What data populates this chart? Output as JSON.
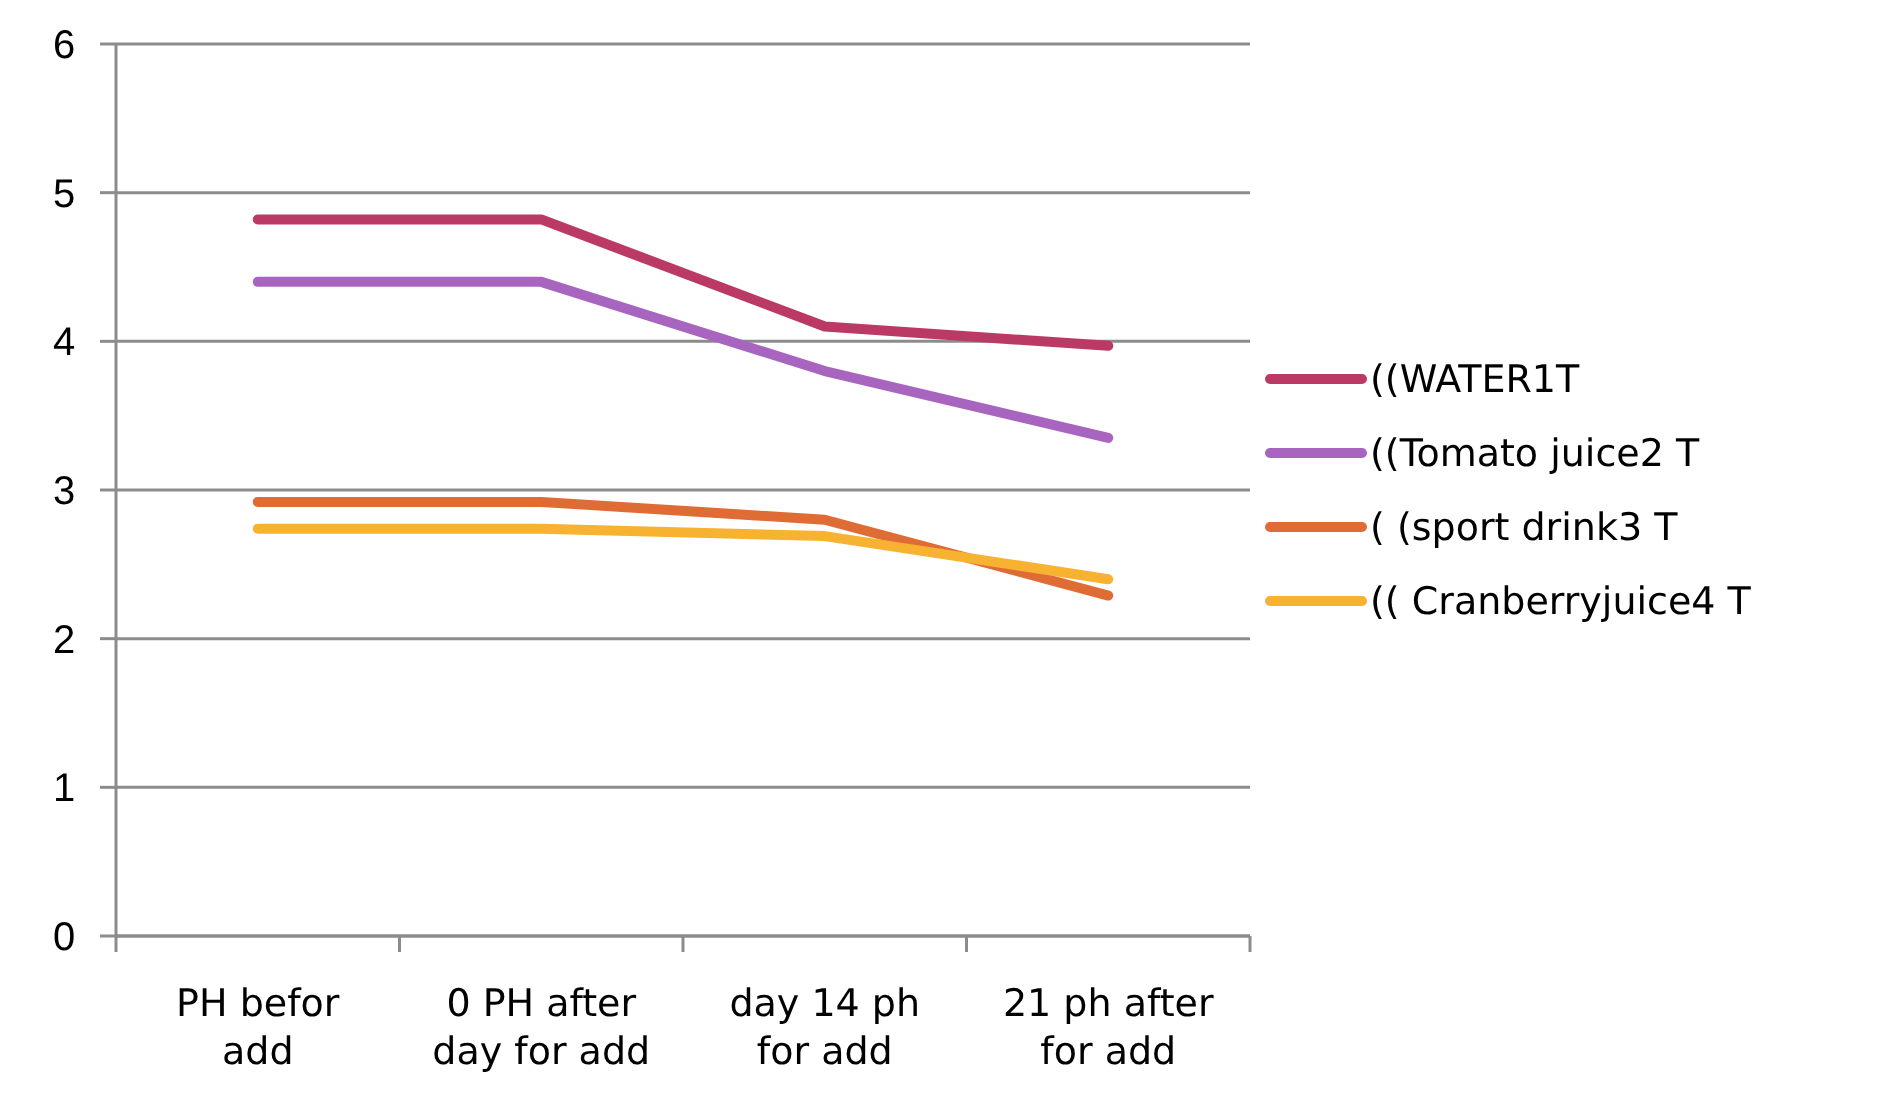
{
  "chart_data": {
    "type": "line",
    "categories": [
      "PH befor add",
      "0 PH after day for add",
      "day 14 ph for add",
      "21 ph after for add"
    ],
    "series": [
      {
        "name": "((WATER1T",
        "color": "#bb3a65",
        "values": [
          4.82,
          4.82,
          4.1,
          3.97
        ]
      },
      {
        "name": "((Tomato juice2 T",
        "color": "#a865c0",
        "values": [
          4.4,
          4.4,
          3.8,
          3.35
        ]
      },
      {
        "name": "( (sport drink3 T",
        "color": "#e06c35",
        "values": [
          2.92,
          2.92,
          2.8,
          2.29
        ]
      },
      {
        "name": "(( Cranberryjuice4 T",
        "color": "#f8b232",
        "values": [
          2.74,
          2.74,
          2.69,
          2.4
        ]
      }
    ],
    "ylim": [
      0,
      6
    ],
    "yticks": [
      0,
      1,
      2,
      3,
      4,
      5,
      6
    ],
    "grid": "y",
    "legend": "right",
    "marker": "none",
    "line_style": "solid"
  }
}
